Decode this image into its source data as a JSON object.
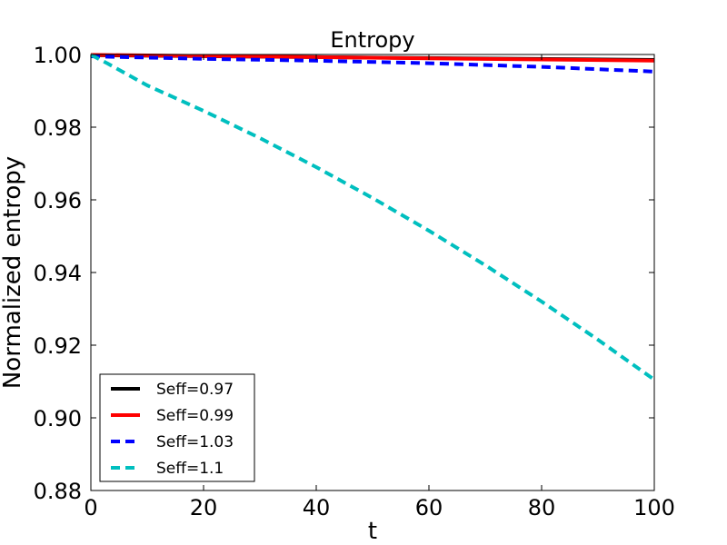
{
  "chart_data": {
    "type": "line",
    "title": "Entropy",
    "xlabel": "t",
    "ylabel": "Normalized entropy",
    "xlim": [
      0,
      100
    ],
    "ylim": [
      0.88,
      1.0
    ],
    "xticks": [
      0,
      20,
      40,
      60,
      80,
      100
    ],
    "xtick_labels": [
      "0",
      "20",
      "40",
      "60",
      "80",
      "100"
    ],
    "yticks": [
      0.88,
      0.9,
      0.92,
      0.94,
      0.96,
      0.98,
      1.0
    ],
    "ytick_labels": [
      "0.88",
      "0.90",
      "0.92",
      "0.94",
      "0.96",
      "0.98",
      "1.00"
    ],
    "grid": false,
    "legend_position": "lower-left",
    "series": [
      {
        "name": "Seff=0.97",
        "color": "#000000",
        "style": "solid",
        "x": [
          0,
          100
        ],
        "y": [
          0.9998,
          0.9985
        ]
      },
      {
        "name": "Seff=0.99",
        "color": "#ff0000",
        "style": "solid",
        "x": [
          0,
          100
        ],
        "y": [
          0.9999,
          0.9983
        ]
      },
      {
        "name": "Seff=1.03",
        "color": "#0000ff",
        "style": "dashed",
        "x": [
          0,
          20,
          40,
          60,
          80,
          100
        ],
        "y": [
          0.9995,
          0.9988,
          0.9983,
          0.9976,
          0.9966,
          0.9953
        ]
      },
      {
        "name": "Seff=1.1",
        "color": "#00bfbf",
        "style": "dashed",
        "x": [
          0,
          3,
          10,
          20,
          30,
          40,
          50,
          60,
          70,
          80,
          90,
          100
        ],
        "y": [
          0.9999,
          0.9975,
          0.9915,
          0.9845,
          0.977,
          0.969,
          0.9605,
          0.9515,
          0.942,
          0.932,
          0.9215,
          0.9105
        ]
      }
    ]
  }
}
